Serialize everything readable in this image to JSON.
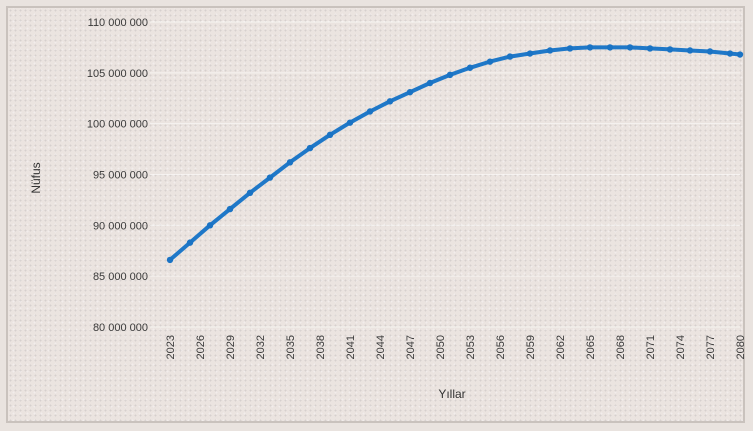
{
  "chart_data": {
    "type": "line",
    "title": "",
    "xlabel": "Yıllar",
    "ylabel": "Nüfus",
    "ylim": [
      80000000,
      110000000
    ],
    "yticks": [
      "110 000 000",
      "105 000 000",
      "100 000 000",
      "95 000 000",
      "90 000 000",
      "85 000 000",
      "80 000 000"
    ],
    "ytick_values": [
      110000000,
      105000000,
      100000000,
      95000000,
      90000000,
      85000000,
      80000000
    ],
    "xticks": [
      "2023",
      "2026",
      "2029",
      "2032",
      "2035",
      "2038",
      "2041",
      "2044",
      "2047",
      "2050",
      "2053",
      "2056",
      "2059",
      "2062",
      "2065",
      "2068",
      "2071",
      "2074",
      "2077",
      "2080"
    ],
    "grid": true,
    "legend": "none",
    "series_color": "#1f78c8",
    "series": [
      {
        "x": [
          2023,
          2025,
          2027,
          2029,
          2031,
          2033,
          2035,
          2037,
          2039,
          2041,
          2043,
          2045,
          2047,
          2049,
          2051,
          2053,
          2055,
          2057,
          2059,
          2061,
          2063,
          2065,
          2067,
          2069,
          2071,
          2073,
          2075,
          2077,
          2079,
          2080
        ],
        "values": [
          86600000,
          88300000,
          90000000,
          91600000,
          93200000,
          94700000,
          96200000,
          97600000,
          98900000,
          100100000,
          101200000,
          102200000,
          103100000,
          104000000,
          104800000,
          105500000,
          106100000,
          106600000,
          106900000,
          107200000,
          107400000,
          107500000,
          107500000,
          107500000,
          107400000,
          107300000,
          107200000,
          107100000,
          106900000,
          106800000
        ]
      }
    ]
  }
}
